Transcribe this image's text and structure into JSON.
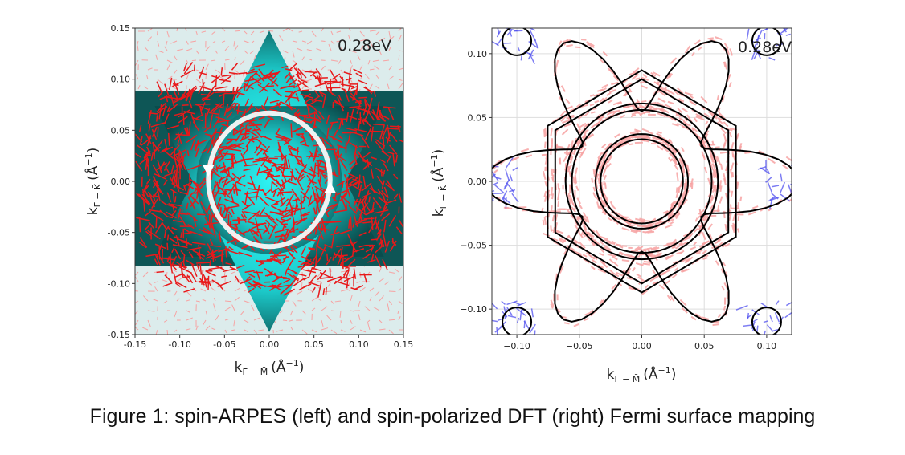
{
  "caption": "Figure 1: spin-ARPES (left) and spin-polarized DFT (right) Fermi surface mapping",
  "colors": {
    "spin_up": "#e8191a",
    "spin_faint": "#f7a3a3",
    "spin_down": "#4747ee",
    "contour": "#000000",
    "cyan_center": "#2ff4f4",
    "cyan_edge": "#0a4c4c",
    "arrow_ring": "#ffffff"
  },
  "chart_data": [
    {
      "type": "scatter",
      "panel": "left",
      "subtitle": "spin-ARPES",
      "annotation": "0.28eV",
      "xlabel_base": "k",
      "xlabel_sub": "Γ̄ − M̄",
      "xlabel_unit": "(Å",
      "xlabel_exp": "−1",
      "ylabel_base": "k",
      "ylabel_sub": "Γ̄ − K̄",
      "ylabel_unit": "(Å",
      "ylabel_exp": "−1",
      "xlim": [
        -0.15,
        0.15
      ],
      "ylim": [
        -0.15,
        0.15
      ],
      "xticks": [
        -0.15,
        -0.1,
        -0.05,
        0.0,
        0.05,
        0.1,
        0.15
      ],
      "xtick_labels": [
        "-0.15",
        "-0.10",
        "-0.05",
        "0.00",
        "0.05",
        "0.10",
        "0.15"
      ],
      "yticks": [
        -0.15,
        -0.1,
        -0.05,
        0.0,
        0.05,
        0.1,
        0.15
      ],
      "ytick_labels": [
        "-0.15",
        "-0.10",
        "-0.05",
        "0.00",
        "0.05",
        "0.10",
        "0.15"
      ],
      "hexagram_vertex_radius": 0.148,
      "intensity_band_y": [
        -0.083,
        0.088
      ],
      "spin_circulation": {
        "center": [
          0.0,
          0.0
        ],
        "radius": 0.068,
        "direction": "counterclockwise"
      },
      "grid": false
    },
    {
      "type": "line",
      "panel": "right",
      "subtitle": "spin-polarized DFT",
      "annotation": "0.28eV",
      "xlabel_base": "k",
      "xlabel_sub": "Γ̄ − M̄",
      "xlabel_unit": "(Å",
      "xlabel_exp": "−1",
      "ylabel_base": "k",
      "ylabel_sub": "Γ̄ − K̄",
      "ylabel_unit": "(Å",
      "ylabel_exp": "−1",
      "xlim": [
        -0.12,
        0.12
      ],
      "ylim": [
        -0.12,
        0.12
      ],
      "xticks": [
        -0.1,
        -0.05,
        0.0,
        0.05,
        0.1
      ],
      "xtick_labels": [
        "−0.10",
        "−0.05",
        "0.00",
        "0.05",
        "0.10"
      ],
      "yticks": [
        -0.1,
        -0.05,
        0.0,
        0.05,
        0.1
      ],
      "ytick_labels": [
        "−0.10",
        "−0.05",
        "0.00",
        "0.05",
        "0.10"
      ],
      "fermi_contours": [
        {
          "shape": "circle",
          "radius": 0.033
        },
        {
          "shape": "circle",
          "radius": 0.037
        },
        {
          "shape": "circle",
          "radius": 0.056
        },
        {
          "shape": "circle",
          "radius": 0.061
        },
        {
          "shape": "hexagon",
          "radius": 0.08
        },
        {
          "shape": "hexagon",
          "radius": 0.087
        },
        {
          "shape": "star",
          "radius": 0.125
        }
      ],
      "grid": true
    }
  ]
}
